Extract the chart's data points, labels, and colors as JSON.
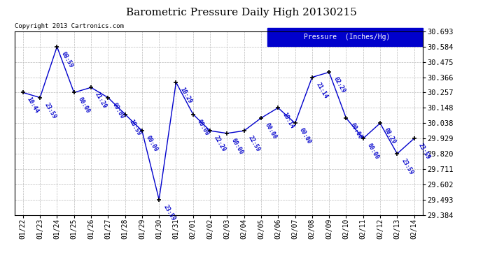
{
  "title": "Barometric Pressure Daily High 20130215",
  "copyright": "Copyright 2013 Cartronics.com",
  "legend_label": "Pressure  (Inches/Hg)",
  "x_labels": [
    "01/22",
    "01/23",
    "01/24",
    "01/25",
    "01/26",
    "01/27",
    "01/28",
    "01/29",
    "01/30",
    "01/31",
    "02/01",
    "02/02",
    "02/03",
    "02/04",
    "02/05",
    "02/06",
    "02/07",
    "02/08",
    "02/09",
    "02/10",
    "02/11",
    "02/12",
    "02/13",
    "02/14"
  ],
  "y_values": [
    30.257,
    30.221,
    30.584,
    30.257,
    30.293,
    30.221,
    30.102,
    29.984,
    29.493,
    30.33,
    30.102,
    29.984,
    29.966,
    29.984,
    30.075,
    30.148,
    30.038,
    30.366,
    30.402,
    30.075,
    29.929,
    30.038,
    29.82,
    29.929
  ],
  "time_labels": [
    "10:44",
    "23:59",
    "08:59",
    "00:00",
    "21:29",
    "00:00",
    "18:59",
    "00:00",
    "23:59",
    "10:29",
    "00:00",
    "22:29",
    "00:00",
    "22:59",
    "00:00",
    "10:14",
    "00:00",
    "21:14",
    "02:29",
    "00:00",
    "00:00",
    "08:29",
    "23:59",
    "23:59"
  ],
  "ylim_min": 29.384,
  "ylim_max": 30.693,
  "yticks": [
    29.384,
    29.493,
    29.602,
    29.711,
    29.82,
    29.929,
    30.038,
    30.148,
    30.257,
    30.366,
    30.475,
    30.584,
    30.693
  ],
  "line_color": "#0000CC",
  "marker_color": "#000000",
  "bg_color": "#ffffff",
  "plot_bg_color": "#ffffff",
  "grid_color": "#bbbbbb",
  "title_color": "#000000",
  "label_color": "#0000CC",
  "legend_bg": "#0000CC",
  "legend_fg": "#ffffff"
}
